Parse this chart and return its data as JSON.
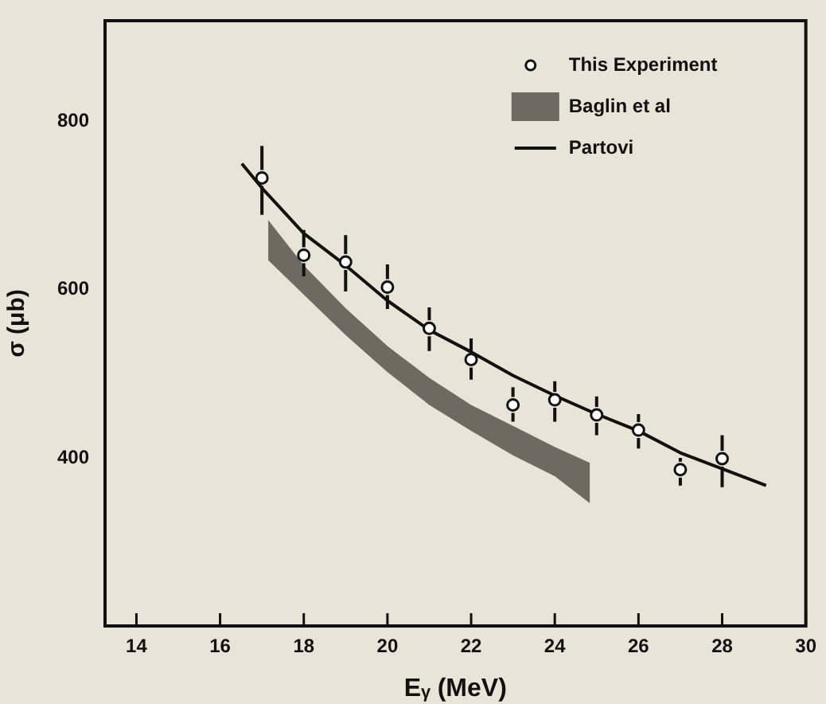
{
  "chart_data": {
    "type": "scatter",
    "xlabel": "Eᵧ (MeV)",
    "ylabel": "σ (μb)",
    "xlim": [
      13.25,
      30
    ],
    "xticks": [
      14,
      16,
      18,
      20,
      22,
      24,
      26,
      28,
      30
    ],
    "ylim": [
      200,
      920
    ],
    "yticks": [
      400,
      600,
      800
    ],
    "grid": false,
    "legend": "top right",
    "series": [
      {
        "name": "This Experiment",
        "marker": "circle",
        "color": "#111111",
        "x": [
          17,
          18,
          19,
          20,
          21,
          22,
          23,
          24,
          25,
          26,
          27,
          28
        ],
        "values": [
          733,
          641,
          633,
          603,
          554,
          517,
          463,
          469,
          451,
          433,
          386,
          399
        ],
        "errors": [
          [
            689,
            771
          ],
          [
            616,
            671
          ],
          [
            598,
            665
          ],
          [
            577,
            630
          ],
          [
            527,
            579
          ],
          [
            493,
            542
          ],
          [
            443,
            484
          ],
          [
            443,
            491
          ],
          [
            427,
            473
          ],
          [
            411,
            452
          ],
          [
            367,
            400
          ],
          [
            365,
            427
          ]
        ]
      },
      {
        "name": "Baglin et al",
        "type": "area",
        "color": "#6e6a62",
        "x": [
          17.15,
          18,
          19,
          20,
          21,
          22,
          23,
          24,
          24.84
        ],
        "values": [
          null,
          null,
          null,
          null,
          null,
          null,
          null,
          null,
          null
        ],
        "lower": [
          635,
          594,
          546,
          502,
          463,
          432,
          403,
          378,
          346
        ],
        "upper": [
          683,
          629,
          578,
          533,
          495,
          463,
          438,
          413,
          394
        ]
      },
      {
        "name": "Partovi",
        "type": "line",
        "marker": "none",
        "color": "#111111",
        "line_style": "solid",
        "x": [
          16.52,
          17,
          18,
          19,
          20,
          21,
          22,
          23,
          24,
          25,
          26,
          27,
          28,
          29.05
        ],
        "values": [
          750,
          721,
          667,
          629,
          587,
          552,
          526,
          498,
          474,
          452,
          432,
          406,
          387,
          367
        ]
      }
    ]
  }
}
